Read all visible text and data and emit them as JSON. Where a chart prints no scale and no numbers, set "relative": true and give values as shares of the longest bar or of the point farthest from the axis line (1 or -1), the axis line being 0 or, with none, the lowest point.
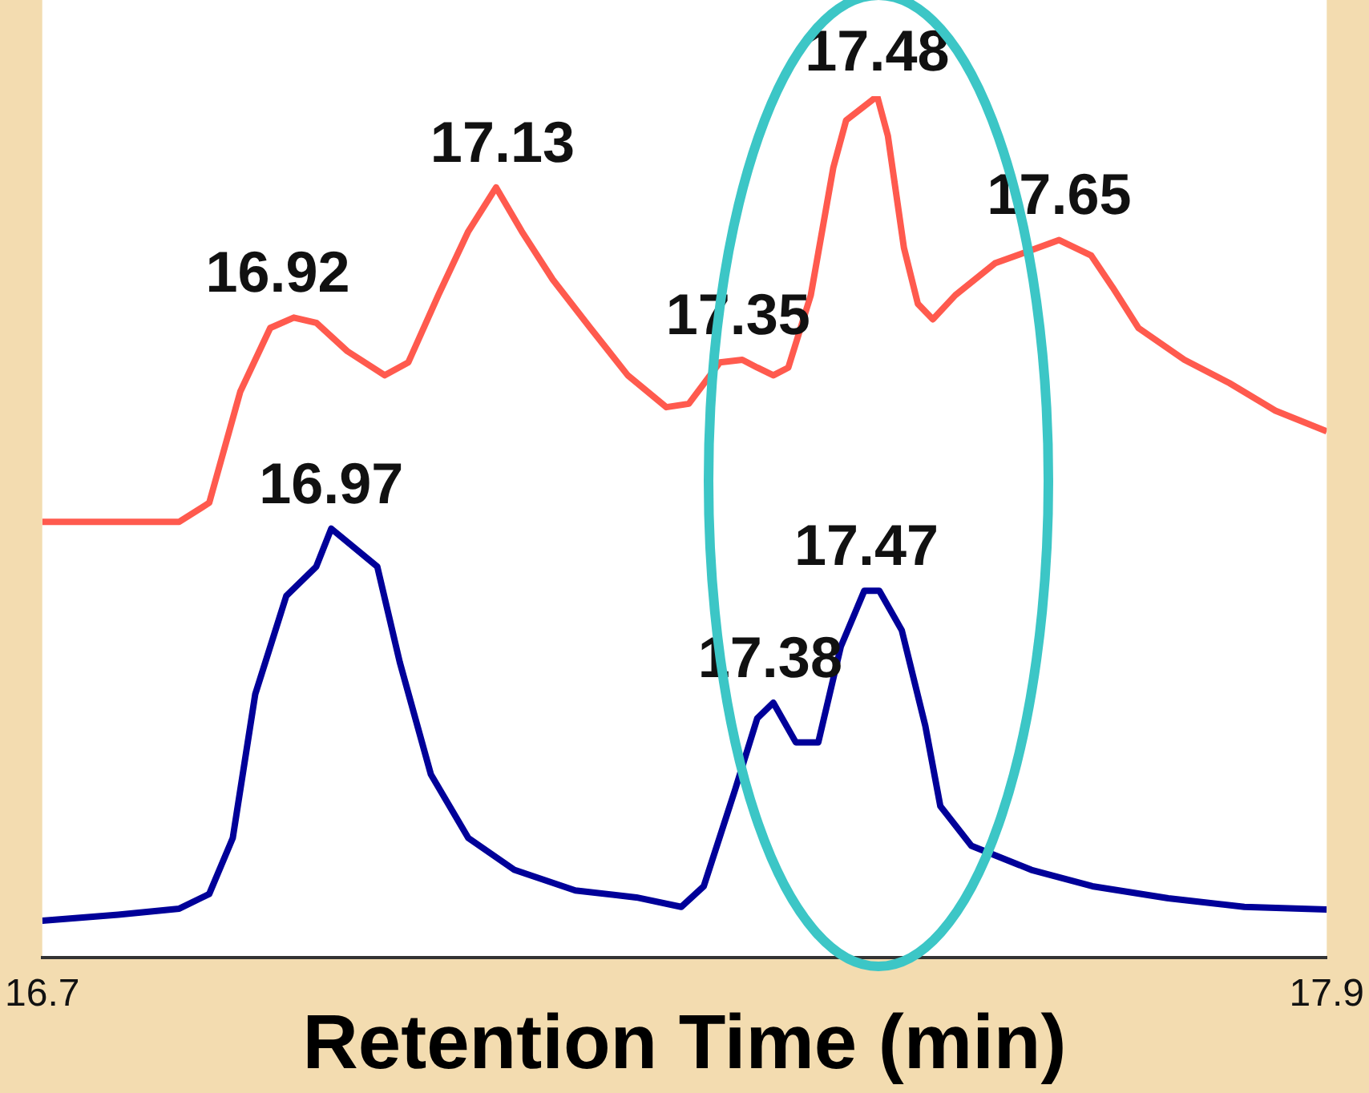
{
  "chart_data": {
    "type": "line",
    "relative": true,
    "xlabel": "Retention Time (min)",
    "xlim": [
      16.7,
      17.9
    ],
    "xticks": [
      16.7,
      17.9
    ],
    "grid": false,
    "legend": false,
    "marker": "none",
    "line_style": "solid",
    "series": [
      {
        "color": "#ff5a4e",
        "x": [
          16.7,
          16.828,
          16.856,
          16.885,
          16.913,
          16.935,
          16.956,
          16.985,
          17.02,
          17.042,
          17.07,
          17.098,
          17.124,
          17.148,
          17.177,
          17.212,
          17.247,
          17.283,
          17.304,
          17.333,
          17.354,
          17.368,
          17.383,
          17.397,
          17.418,
          17.439,
          17.451,
          17.48,
          17.49,
          17.505,
          17.518,
          17.532,
          17.553,
          17.59,
          17.65,
          17.68,
          17.7,
          17.724,
          17.767,
          17.809,
          17.852,
          17.9
        ],
        "values": [
          0.506,
          0.506,
          0.528,
          0.657,
          0.731,
          0.743,
          0.737,
          0.704,
          0.676,
          0.691,
          0.769,
          0.843,
          0.894,
          0.843,
          0.787,
          0.731,
          0.676,
          0.639,
          0.643,
          0.691,
          0.694,
          0.685,
          0.676,
          0.685,
          0.769,
          0.917,
          0.972,
          1,
          0.954,
          0.824,
          0.759,
          0.741,
          0.769,
          0.806,
          0.833,
          0.815,
          0.778,
          0.731,
          0.694,
          0.667,
          0.635,
          0.611
        ]
      },
      {
        "color": "#000099",
        "x": [
          16.7,
          16.771,
          16.828,
          16.856,
          16.878,
          16.899,
          16.928,
          16.956,
          16.97,
          17.013,
          17.034,
          17.063,
          17.098,
          17.141,
          17.198,
          17.255,
          17.297,
          17.318,
          17.347,
          17.368,
          17.383,
          17.404,
          17.425,
          17.446,
          17.468,
          17.482,
          17.503,
          17.525,
          17.539,
          17.568,
          17.624,
          17.681,
          17.752,
          17.823,
          17.9
        ],
        "values": [
          0.043,
          0.05,
          0.057,
          0.074,
          0.139,
          0.306,
          0.42,
          0.454,
          0.498,
          0.454,
          0.343,
          0.213,
          0.139,
          0.102,
          0.078,
          0.07,
          0.059,
          0.083,
          0.194,
          0.278,
          0.296,
          0.25,
          0.25,
          0.361,
          0.426,
          0.426,
          0.38,
          0.269,
          0.176,
          0.13,
          0.102,
          0.083,
          0.069,
          0.059,
          0.056
        ]
      }
    ],
    "annotations": [
      {
        "text": "16.92",
        "x": 16.92,
        "y": 0.743
      },
      {
        "text": "17.13",
        "x": 17.13,
        "y": 0.894
      },
      {
        "text": "17.35",
        "x": 17.35,
        "y": 0.694
      },
      {
        "text": "17.48",
        "x": 17.48,
        "y": 1
      },
      {
        "text": "17.65",
        "x": 17.65,
        "y": 0.833
      },
      {
        "text": "16.97",
        "x": 16.97,
        "y": 0.498
      },
      {
        "text": "17.38",
        "x": 17.38,
        "y": 0.296
      },
      {
        "text": "17.47",
        "x": 17.47,
        "y": 0.426
      }
    ]
  }
}
